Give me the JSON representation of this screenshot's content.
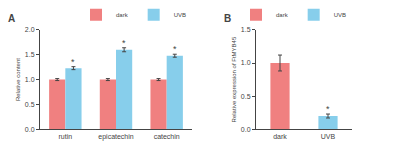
{
  "chart_data": [
    {
      "type": "bar",
      "title": "A",
      "categories": [
        "rutin",
        "epicatechin",
        "catechin"
      ],
      "series": [
        {
          "name": "dark",
          "color": "#F08080",
          "values": [
            1.0,
            1.0,
            1.0
          ],
          "errors": [
            0.02,
            0.02,
            0.02
          ]
        },
        {
          "name": "UVB",
          "color": "#87CEEB",
          "values": [
            1.23,
            1.6,
            1.48
          ],
          "errors": [
            0.03,
            0.04,
            0.03
          ]
        }
      ],
      "ylabel": "Relative content",
      "ylim": [
        0,
        2.0
      ],
      "yticks": [
        {
          "value": 0,
          "label": "0.0"
        },
        0.5,
        {
          "value": 1,
          "label": "1.0"
        },
        1.5,
        {
          "value": 2,
          "label": "2.0"
        }
      ],
      "annotations": [
        {
          "text": "*",
          "x": "rutin",
          "series": "UVB"
        },
        {
          "text": "*",
          "x": "epicatechin",
          "series": "UVB"
        },
        {
          "text": "*",
          "x": "catechin",
          "series": "UVB"
        }
      ],
      "grid": false,
      "legend": "top"
    },
    {
      "type": "bar",
      "title": "B",
      "categories": [
        "dark",
        "UVB"
      ],
      "series": [
        {
          "name": "dark",
          "color": "#F08080",
          "values": [
            1.0,
            null
          ],
          "errors": [
            0.12,
            null
          ]
        },
        {
          "name": "UVB",
          "color": "#87CEEB",
          "values": [
            null,
            0.2
          ],
          "errors": [
            null,
            0.03
          ]
        }
      ],
      "ylabel": "Relative expression of FtMYB45",
      "ylim": [
        0,
        1.5
      ],
      "yticks": [
        {
          "value": 0,
          "label": "0.0"
        },
        0.5,
        {
          "value": 1,
          "label": "1.0"
        },
        1.5
      ],
      "annotations": [
        {
          "text": "*",
          "x": "UVB",
          "series": "UVB"
        }
      ],
      "grid": false,
      "legend": "top"
    }
  ]
}
